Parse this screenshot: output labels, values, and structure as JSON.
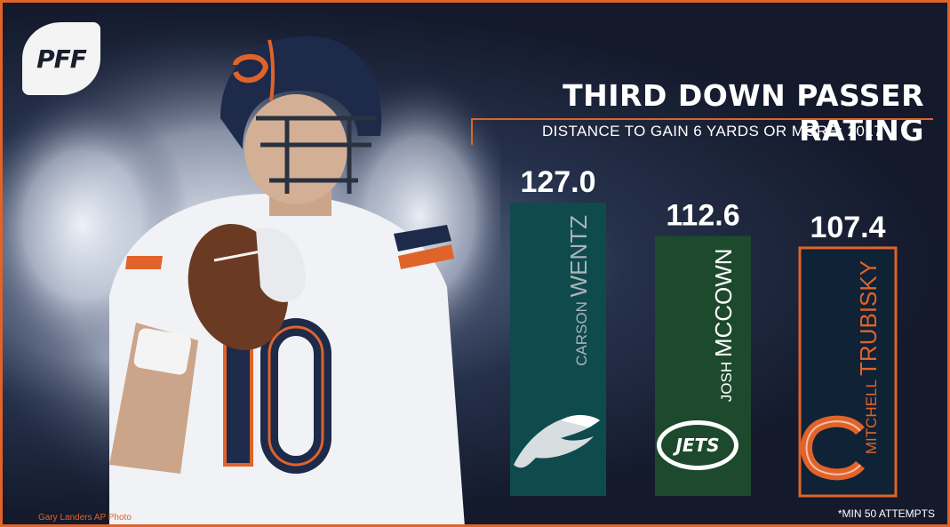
{
  "brand": {
    "logo_text": "PFF"
  },
  "header": {
    "title": "THIRD DOWN PASSER RATING",
    "subtitle": "DISTANCE TO GAIN 6 YARDS OR MORE; 2017"
  },
  "chart_data": {
    "type": "bar",
    "title": "THIRD DOWN PASSER RATING",
    "subtitle": "DISTANCE TO GAIN 6 YARDS OR MORE; 2017",
    "categories": [
      "CARSON WENTZ",
      "JOSH MCCOWN",
      "MITCHELL TRUBISKY"
    ],
    "values": [
      127.0,
      112.6,
      107.4
    ],
    "value_labels": [
      "127.0",
      "112.6",
      "107.4"
    ],
    "bars": [
      {
        "first_name": "CARSON",
        "last_name": "WENTZ",
        "team": "Eagles",
        "fill": "#0f4a4d",
        "stroke": "none",
        "name_color": "#aab4b8",
        "logo": "eagles-logo-icon"
      },
      {
        "first_name": "JOSH",
        "last_name": "MCCOWN",
        "team": "Jets",
        "fill": "#1d4a2c",
        "stroke": "none",
        "name_color": "#ffffff",
        "logo": "jets-logo-icon"
      },
      {
        "first_name": "MITCHELL",
        "last_name": "TRUBISKY",
        "team": "Bears",
        "fill": "#0f2236",
        "stroke": "#e0632a",
        "name_color": "#e0632a",
        "logo": "bears-logo-icon"
      }
    ],
    "ylim": [
      0,
      127.0
    ],
    "grid": false,
    "legend": "none"
  },
  "footnote": "*MIN 50 ATTEMPTS",
  "credit": "Gary Landers AP Photo"
}
